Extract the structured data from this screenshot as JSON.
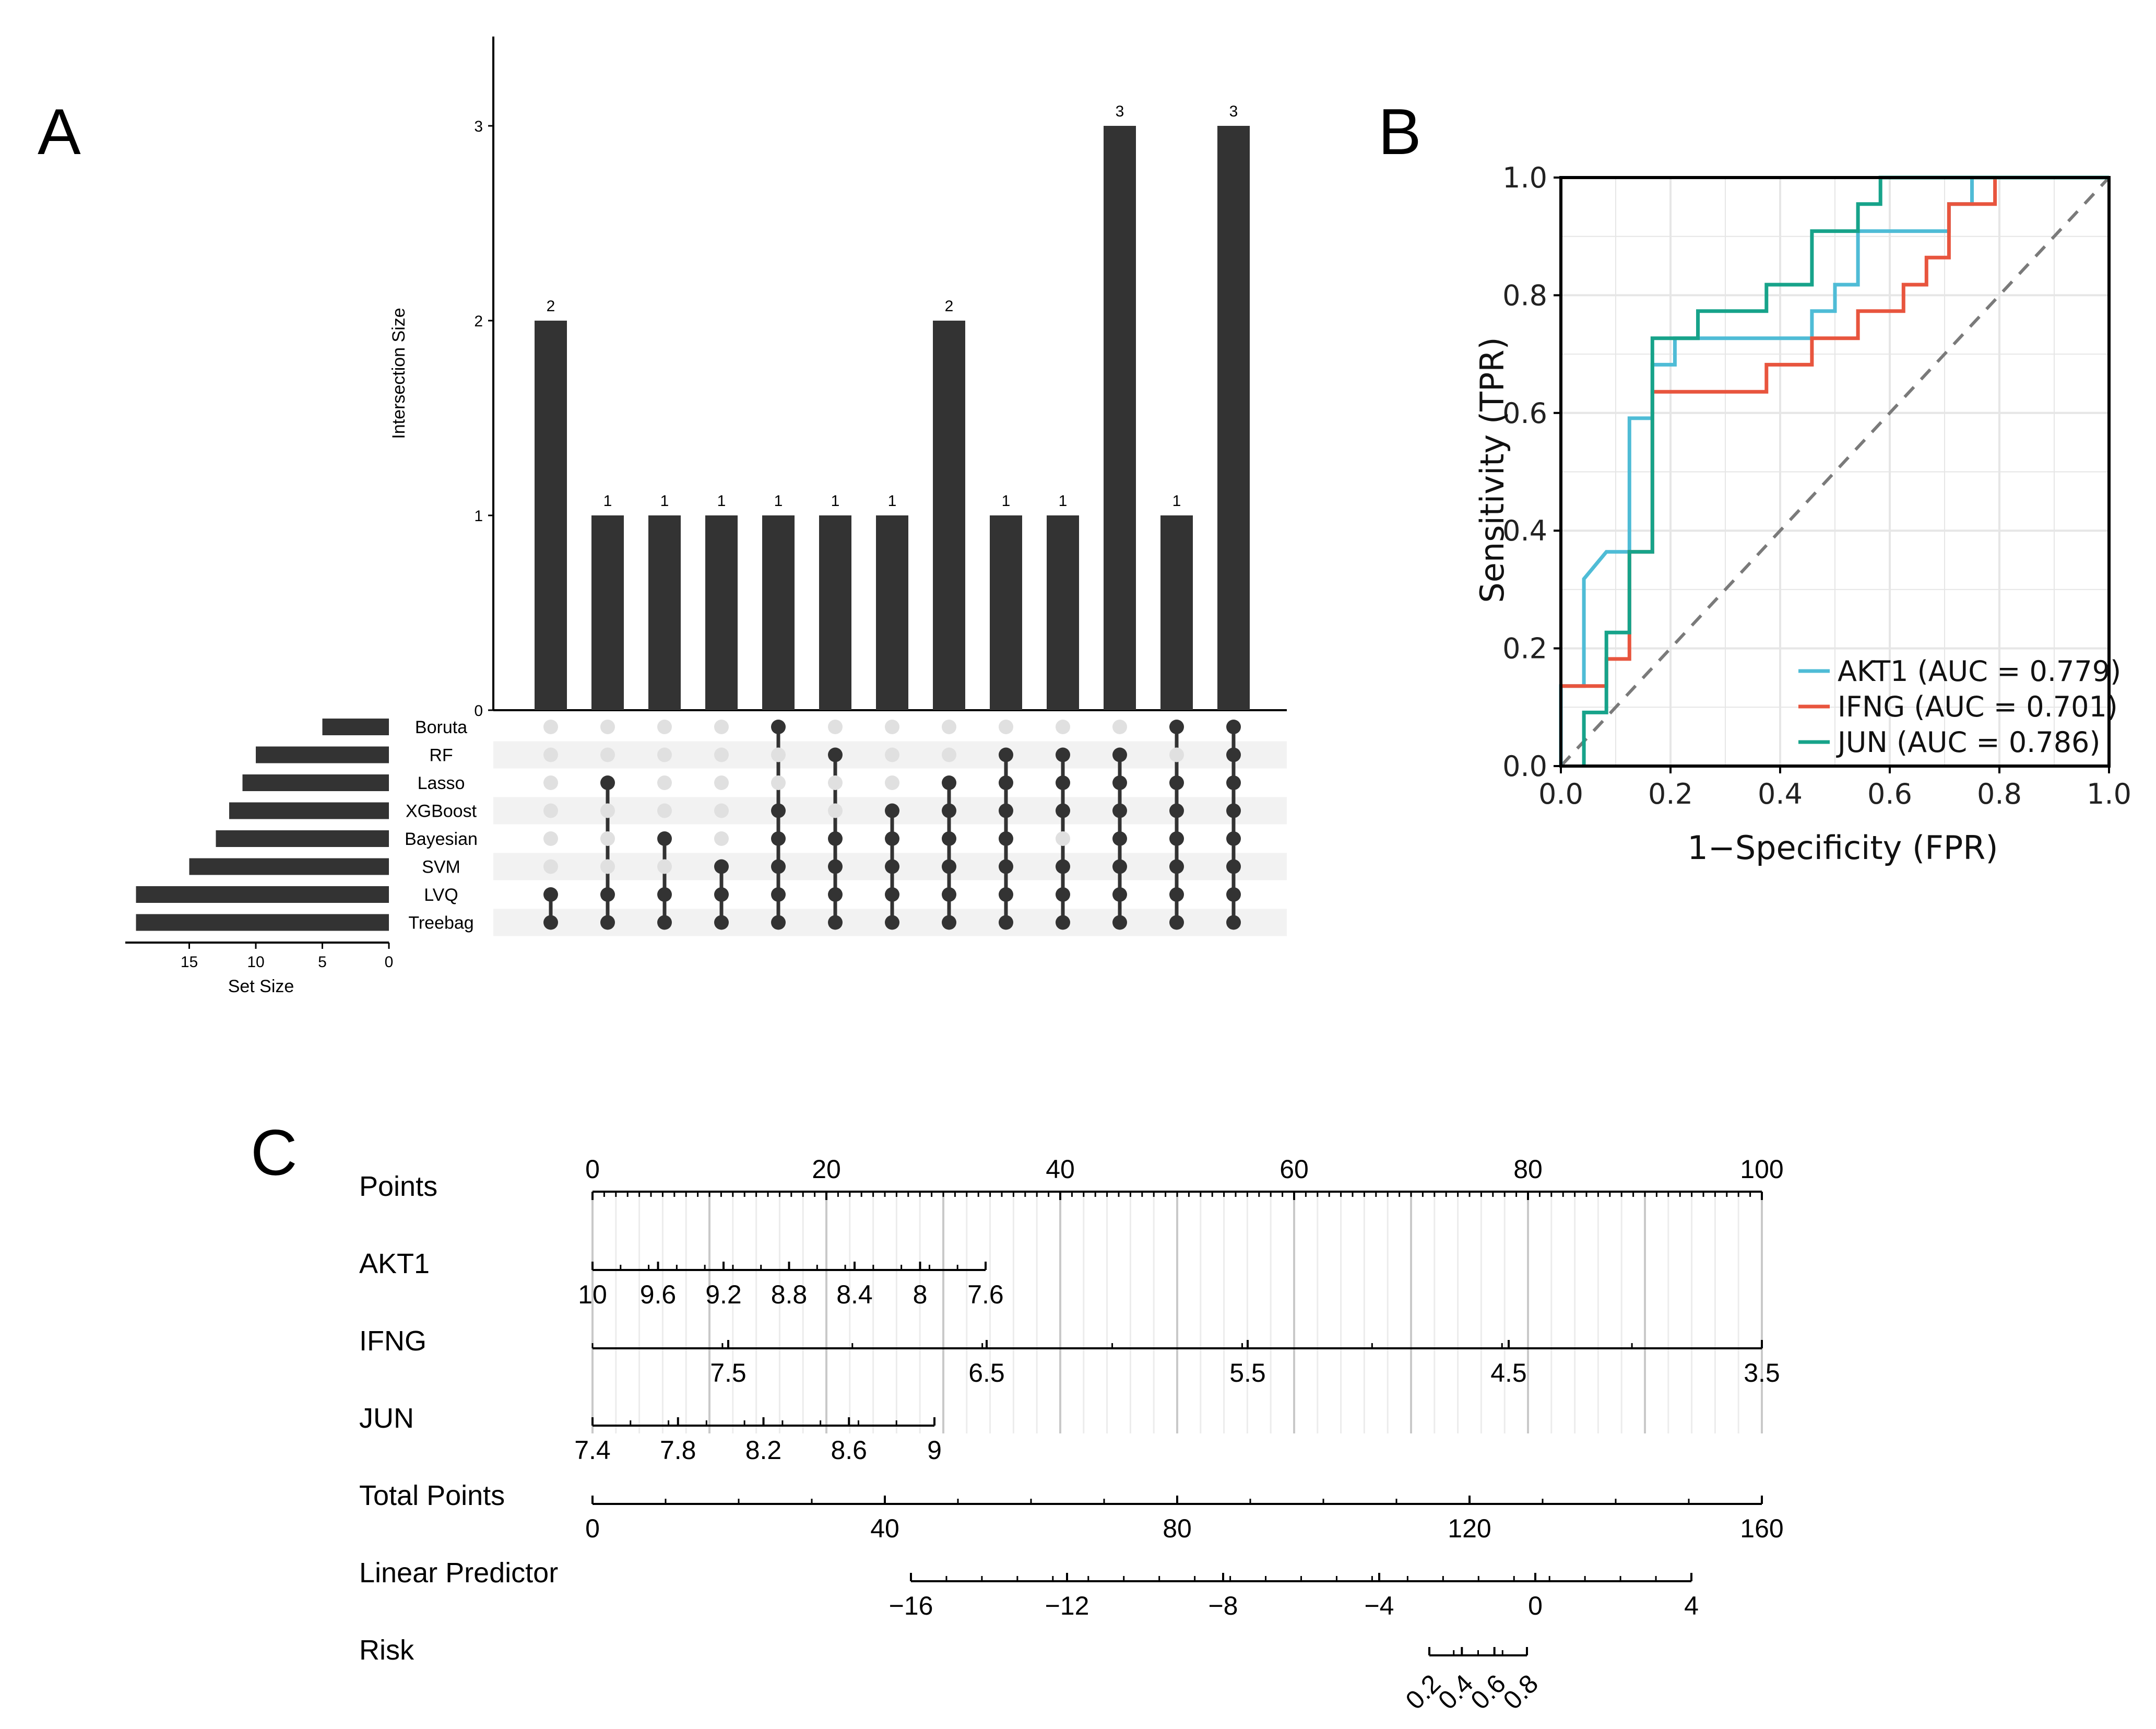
{
  "panels": {
    "a": "A",
    "b": "B",
    "c": "C"
  },
  "chart_data": [
    {
      "type": "bar",
      "name": "upset",
      "ylabel": "Intersection Size",
      "xlabel": "Set Size",
      "ylim": [
        0,
        3.5
      ],
      "yticks": [
        "0",
        "1",
        "2",
        "3"
      ],
      "set_ticks": [
        "15",
        "10",
        "5",
        "0"
      ],
      "sets": [
        "Boruta",
        "RF",
        "Lasso",
        "XGBoost",
        "Bayesian",
        "SVM",
        "LVQ",
        "Treebag"
      ],
      "set_sizes": [
        5,
        10,
        11,
        12,
        13,
        15,
        19,
        19
      ],
      "intersection_sizes": [
        2,
        1,
        1,
        1,
        1,
        1,
        1,
        2,
        1,
        1,
        3,
        1,
        3
      ],
      "value_labels": [
        "2",
        "1",
        "1",
        "1",
        "1",
        "1",
        "1",
        "2",
        "1",
        "1",
        "3",
        "1",
        "3"
      ],
      "membership": [
        [
          0,
          0,
          0,
          0,
          0,
          0,
          1,
          1
        ],
        [
          0,
          0,
          1,
          0,
          0,
          0,
          1,
          1
        ],
        [
          0,
          0,
          0,
          0,
          1,
          0,
          1,
          1
        ],
        [
          0,
          0,
          0,
          0,
          0,
          1,
          1,
          1
        ],
        [
          1,
          0,
          0,
          1,
          1,
          1,
          1,
          1
        ],
        [
          0,
          1,
          0,
          0,
          1,
          1,
          1,
          1
        ],
        [
          0,
          0,
          0,
          1,
          1,
          1,
          1,
          1
        ],
        [
          0,
          0,
          1,
          1,
          1,
          1,
          1,
          1
        ],
        [
          0,
          1,
          1,
          1,
          1,
          1,
          1,
          1
        ],
        [
          0,
          1,
          1,
          1,
          0,
          1,
          1,
          1
        ],
        [
          0,
          1,
          1,
          1,
          1,
          1,
          1,
          1
        ],
        [
          1,
          0,
          1,
          1,
          1,
          1,
          1,
          1
        ],
        [
          1,
          1,
          1,
          1,
          1,
          1,
          1,
          1
        ]
      ]
    },
    {
      "type": "line",
      "name": "roc",
      "xlabel": "1−Specificity (FPR)",
      "ylabel": "Sensitivity (TPR)",
      "xlim": [
        0,
        1
      ],
      "ylim": [
        0,
        1
      ],
      "ticks": [
        "0.0",
        "0.2",
        "0.4",
        "0.6",
        "0.8",
        "1.0"
      ],
      "series": [
        {
          "name": "AKT1",
          "legend": "AKT1 (AUC = 0.779)",
          "color": "#4fbcd6",
          "x": [
            0,
            0,
            0.042,
            0.042,
            0.042,
            0.083,
            0.125,
            0.125,
            0.167,
            0.167,
            0.208,
            0.208,
            0.458,
            0.458,
            0.5,
            0.5,
            0.542,
            0.542,
            0.708,
            0.708,
            0.75,
            0.75,
            1
          ],
          "y": [
            0,
            0.136,
            0.136,
            0.318,
            0.318,
            0.364,
            0.364,
            0.591,
            0.591,
            0.682,
            0.682,
            0.727,
            0.727,
            0.773,
            0.773,
            0.818,
            0.818,
            0.909,
            0.909,
            0.955,
            0.955,
            1,
            1
          ]
        },
        {
          "name": "IFNG",
          "legend": "IFNG (AUC = 0.701)",
          "color": "#e8553e",
          "x": [
            0,
            0.042,
            0.083,
            0.083,
            0.125,
            0.125,
            0.167,
            0.167,
            0.375,
            0.375,
            0.458,
            0.458,
            0.542,
            0.542,
            0.625,
            0.625,
            0.667,
            0.667,
            0.708,
            0.708,
            0.792,
            0.792,
            1
          ],
          "y": [
            0.136,
            0.136,
            0.136,
            0.182,
            0.182,
            0.364,
            0.364,
            0.636,
            0.636,
            0.682,
            0.682,
            0.727,
            0.727,
            0.773,
            0.773,
            0.818,
            0.818,
            0.864,
            0.864,
            0.955,
            0.955,
            1,
            1
          ]
        },
        {
          "name": "JUN",
          "legend": "JUN (AUC = 0.786)",
          "color": "#17a38a",
          "x": [
            0.042,
            0.042,
            0.083,
            0.083,
            0.125,
            0.125,
            0.167,
            0.167,
            0.25,
            0.25,
            0.375,
            0.375,
            0.458,
            0.458,
            0.542,
            0.542,
            0.583,
            0.583,
            1
          ],
          "y": [
            0,
            0.091,
            0.091,
            0.227,
            0.227,
            0.364,
            0.364,
            0.727,
            0.727,
            0.773,
            0.773,
            0.818,
            0.818,
            0.909,
            0.909,
            0.955,
            0.955,
            1,
            1
          ]
        }
      ],
      "reference_line": {
        "x": [
          0,
          1
        ],
        "y": [
          0,
          1
        ],
        "style": "dashed"
      }
    },
    {
      "type": "nomogram",
      "name": "nomogram",
      "rows": [
        {
          "label": "Points",
          "ticks": [
            "0",
            "20",
            "40",
            "60",
            "80",
            "100"
          ],
          "values": [
            0,
            20,
            40,
            60,
            80,
            100
          ]
        },
        {
          "label": "AKT1",
          "ticks": [
            "10",
            "9.6",
            "9.2",
            "8.8",
            "8.4",
            "8",
            "7.6"
          ]
        },
        {
          "label": "IFNG",
          "ticks": [
            "7.5",
            "6.5",
            "5.5",
            "4.5",
            "3.5"
          ]
        },
        {
          "label": "JUN",
          "ticks": [
            "7.4",
            "7.8",
            "8.2",
            "8.6",
            "9"
          ]
        },
        {
          "label": "Total Points",
          "ticks": [
            "0",
            "40",
            "80",
            "120",
            "160"
          ],
          "values": [
            0,
            40,
            80,
            120,
            160
          ]
        },
        {
          "label": "Linear Predictor",
          "ticks": [
            "−16",
            "−12",
            "−8",
            "−4",
            "0",
            "4"
          ],
          "values": [
            -16,
            -12,
            -8,
            -4,
            0,
            4
          ]
        },
        {
          "label": "Risk",
          "ticks": [
            "0.2",
            "0.4",
            "0.6",
            "0.8"
          ],
          "values": [
            0.2,
            0.4,
            0.6,
            0.8
          ]
        }
      ]
    }
  ]
}
